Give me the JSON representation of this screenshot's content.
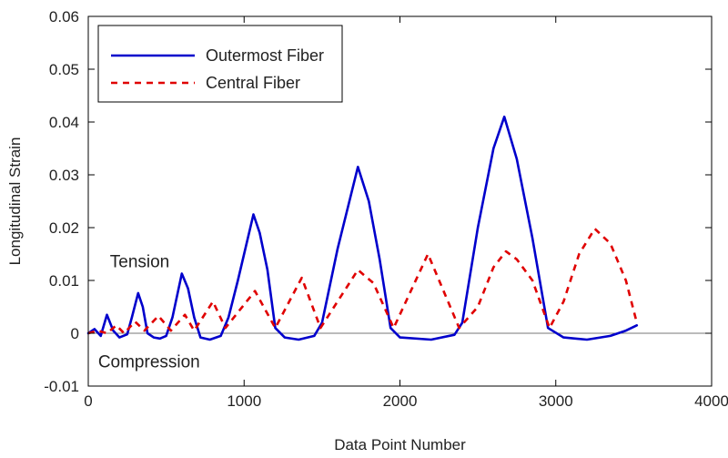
{
  "chart_data": {
    "type": "line",
    "title": "",
    "xlabel": "Data Point Number",
    "ylabel": "Longitudinal Strain",
    "xlim": [
      0,
      4000
    ],
    "ylim": [
      -0.01,
      0.06
    ],
    "xticks": [
      0,
      1000,
      2000,
      3000,
      4000
    ],
    "yticks": [
      -0.01,
      0,
      0.01,
      0.02,
      0.03,
      0.04,
      0.05,
      0.06
    ],
    "xtick_labels": [
      "0",
      "1000",
      "2000",
      "3000",
      "4000"
    ],
    "ytick_labels": [
      "-0.01",
      "0",
      "0.01",
      "0.02",
      "0.03",
      "0.04",
      "0.05",
      "0.06"
    ],
    "grid": false,
    "zero_line": true,
    "legend": {
      "position": "top-left"
    },
    "annotations": [
      {
        "text": "Tension",
        "x": 330,
        "y": 0.0125
      },
      {
        "text": "Compression",
        "x": 390,
        "y": -0.0065
      }
    ],
    "series": [
      {
        "name": "Outermost Fiber",
        "color": "#0000cc",
        "style": "solid",
        "points": [
          [
            0,
            0
          ],
          [
            40,
            0.0008
          ],
          [
            80,
            -0.0005
          ],
          [
            120,
            0.0035
          ],
          [
            160,
            0.0005
          ],
          [
            200,
            -0.0008
          ],
          [
            250,
            -0.0002
          ],
          [
            280,
            0.003
          ],
          [
            320,
            0.0076
          ],
          [
            350,
            0.005
          ],
          [
            380,
            0
          ],
          [
            420,
            -0.0008
          ],
          [
            460,
            -0.001
          ],
          [
            500,
            -0.0005
          ],
          [
            540,
            0.003
          ],
          [
            600,
            0.0113
          ],
          [
            640,
            0.0085
          ],
          [
            680,
            0.003
          ],
          [
            720,
            -0.0008
          ],
          [
            780,
            -0.0012
          ],
          [
            850,
            -0.0005
          ],
          [
            900,
            0.003
          ],
          [
            960,
            0.01
          ],
          [
            1060,
            0.0225
          ],
          [
            1100,
            0.019
          ],
          [
            1150,
            0.012
          ],
          [
            1200,
            0.001
          ],
          [
            1260,
            -0.0008
          ],
          [
            1350,
            -0.0012
          ],
          [
            1450,
            -0.0005
          ],
          [
            1500,
            0.002
          ],
          [
            1600,
            0.016
          ],
          [
            1730,
            0.0315
          ],
          [
            1800,
            0.025
          ],
          [
            1870,
            0.014
          ],
          [
            1940,
            0.001
          ],
          [
            2000,
            -0.0008
          ],
          [
            2200,
            -0.0012
          ],
          [
            2350,
            -0.0003
          ],
          [
            2400,
            0.002
          ],
          [
            2500,
            0.02
          ],
          [
            2600,
            0.035
          ],
          [
            2670,
            0.041
          ],
          [
            2750,
            0.033
          ],
          [
            2850,
            0.018
          ],
          [
            2950,
            0.001
          ],
          [
            3050,
            -0.0008
          ],
          [
            3200,
            -0.0012
          ],
          [
            3350,
            -0.0005
          ],
          [
            3450,
            0.0005
          ],
          [
            3520,
            0.0015
          ]
        ]
      },
      {
        "name": "Central Fiber",
        "color": "#e00000",
        "style": "dashed",
        "points": [
          [
            0,
            0
          ],
          [
            60,
            0.0005
          ],
          [
            120,
            0
          ],
          [
            180,
            0.0015
          ],
          [
            230,
            0
          ],
          [
            300,
            0.0022
          ],
          [
            360,
            0.0005
          ],
          [
            450,
            0.0033
          ],
          [
            530,
            0.0005
          ],
          [
            620,
            0.0035
          ],
          [
            680,
            0.0005
          ],
          [
            800,
            0.006
          ],
          [
            880,
            0.001
          ],
          [
            1070,
            0.008
          ],
          [
            1200,
            0.001
          ],
          [
            1370,
            0.0105
          ],
          [
            1490,
            0.001
          ],
          [
            1730,
            0.012
          ],
          [
            1830,
            0.0095
          ],
          [
            1960,
            0.001
          ],
          [
            2180,
            0.015
          ],
          [
            2380,
            0.001
          ],
          [
            2500,
            0.005
          ],
          [
            2600,
            0.0125
          ],
          [
            2680,
            0.0155
          ],
          [
            2750,
            0.014
          ],
          [
            2850,
            0.01
          ],
          [
            2960,
            0.001
          ],
          [
            3050,
            0.006
          ],
          [
            3150,
            0.015
          ],
          [
            3250,
            0.0198
          ],
          [
            3350,
            0.017
          ],
          [
            3450,
            0.01
          ],
          [
            3520,
            0.002
          ]
        ]
      }
    ]
  }
}
